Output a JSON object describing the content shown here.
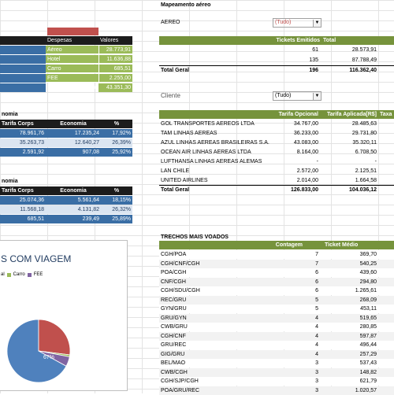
{
  "colors": {
    "header_dark": "#1c1c1c",
    "header_green": "#76933c",
    "blue": "#3a6ea5",
    "green": "#9bbb59",
    "red": "#c0504d",
    "pie_blue": "#4f81bd"
  },
  "expenses": {
    "headers": [
      "Despesas",
      "Valores"
    ],
    "rows": [
      [
        "Aéreo",
        "28.773,91"
      ],
      [
        "Hotel",
        "11.636,88"
      ],
      [
        "Carro",
        "685,51"
      ],
      [
        "FEE",
        "2.255,00"
      ]
    ],
    "total": [
      "Total",
      "43.351,30"
    ]
  },
  "economy1": {
    "title": "nomia",
    "headers": [
      "Tarifa Corps",
      "Economia",
      "%"
    ],
    "rows": [
      [
        "78.961,76",
        "17.235,24",
        "17,92%"
      ],
      [
        "35.263,73",
        "12.640,27",
        "26,39%"
      ],
      [
        "2.591,92",
        "907,08",
        "25,92%"
      ]
    ]
  },
  "economy2": {
    "title": "nomia",
    "headers": [
      "Tarifa Corps",
      "Economia",
      "%"
    ],
    "rows": [
      [
        "25.074,36",
        "5.561,64",
        "18,15%"
      ],
      [
        "11.568,18",
        "4.131,82",
        "26,32%"
      ],
      [
        "685,51",
        "239,49",
        "25,89%"
      ]
    ]
  },
  "chart": {
    "title": "S COM VIAGEM",
    "legend": [
      "al",
      "Carro",
      "FEE"
    ],
    "slice_label": "67%"
  },
  "chart_data": {
    "type": "pie",
    "title": "S COM VIAGEM",
    "categories": [
      "Aéreo",
      "Hotel",
      "Carro",
      "FEE"
    ],
    "values": [
      67,
      27,
      1,
      5
    ],
    "legend": "top"
  },
  "air_map": {
    "title": "Mapeamento aéreo",
    "filter_label": "AEREO",
    "filter_value": "(Tudo)",
    "headers": [
      "Tickets Emitidos",
      "Total"
    ],
    "rows": [
      [
        "61",
        "28.573,91"
      ],
      [
        "135",
        "87.788,49"
      ]
    ],
    "total": [
      "Total Geral",
      "196",
      "116.362,40"
    ]
  },
  "client": {
    "filter_label": "Cliente",
    "filter_value": "(Tudo)",
    "headers": [
      "Tarifa Opcional",
      "Tarifa Aplicada[R$]",
      "Taxa"
    ],
    "rows": [
      [
        "GOL TRANSPORTES AEREOS  LTDA",
        "34.767,00",
        "28.485,63"
      ],
      [
        "TAM LINHAS AEREAS",
        "36.233,00",
        "29.731,80"
      ],
      [
        "AZUL LINHAS AEREAS BRASILEIRAS S.A.",
        "43.083,00",
        "35.320,11"
      ],
      [
        "OCEAN AIR LINHAS AEREAS LTDA",
        "8.164,00",
        "6.708,50"
      ],
      [
        "LUFTHANSA LINHAS AEREAS ALEMAS",
        "-",
        "-"
      ],
      [
        "LAN CHILE",
        "2.572,00",
        "2.125,51"
      ],
      [
        "UNITED AIRLINES",
        "2.014,00",
        "1.664,58"
      ]
    ],
    "total": [
      "Total Geral",
      "126.833,00",
      "104.036,12"
    ]
  },
  "routes": {
    "title": "TRECHOS MAIS VOADOS",
    "headers": [
      "Contagem",
      "Ticket Médio"
    ],
    "rows": [
      [
        "CGH/POA",
        "7",
        "369,70"
      ],
      [
        "CGH/CNF/CGH",
        "7",
        "540,25"
      ],
      [
        "POA/CGH",
        "6",
        "439,60"
      ],
      [
        "CNF/CGH",
        "6",
        "294,80"
      ],
      [
        "CGH/SDU/CGH",
        "6",
        "1.265,61"
      ],
      [
        "REC/GRU",
        "5",
        "268,09"
      ],
      [
        "GYN/GRU",
        "5",
        "453,11"
      ],
      [
        "GRU/GYN",
        "4",
        "519,65"
      ],
      [
        "CWB/GRU",
        "4",
        "280,85"
      ],
      [
        "CGH/CNF",
        "4",
        "597,87"
      ],
      [
        "GRU/REC",
        "4",
        "496,44"
      ],
      [
        "GIG/GRU",
        "4",
        "257,29"
      ],
      [
        "BEL/MAO",
        "3",
        "537,43"
      ],
      [
        "CWB/CGH",
        "3",
        "148,82"
      ],
      [
        "CGH/SJP/CGH",
        "3",
        "621,79"
      ],
      [
        "POA/GRU/REC",
        "3",
        "1.020,57"
      ]
    ]
  }
}
